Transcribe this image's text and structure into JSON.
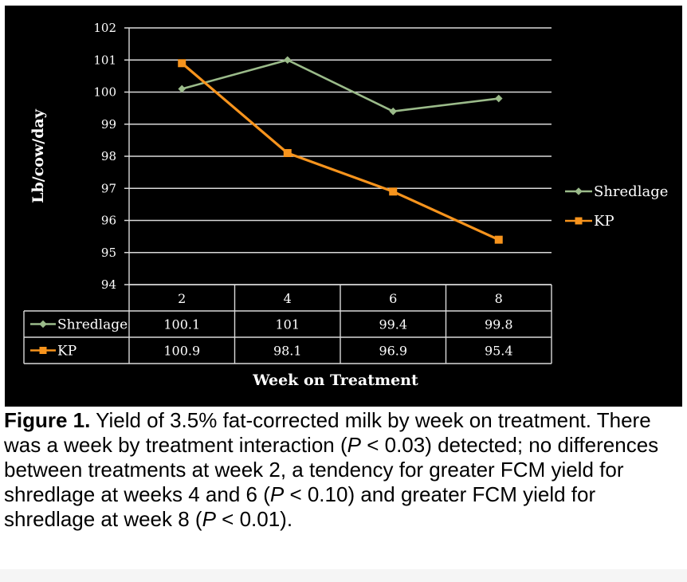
{
  "chart_data": {
    "type": "line",
    "title": "",
    "xlabel": "Week on Treatment",
    "ylabel": "Lb/cow/day",
    "categories": [
      "2",
      "4",
      "6",
      "8"
    ],
    "ylim": [
      94,
      102
    ],
    "yticks": [
      "94",
      "95",
      "96",
      "97",
      "98",
      "99",
      "100",
      "101",
      "102"
    ],
    "grid": true,
    "legend_position": "right",
    "series": [
      {
        "name": "Shredlage",
        "values": [
          100.1,
          101,
          99.4,
          99.8
        ],
        "labels": [
          "100.1",
          "101",
          "99.4",
          "99.8"
        ],
        "color": "#9bbb8a",
        "marker": "diamond"
      },
      {
        "name": "KP",
        "values": [
          100.9,
          98.1,
          96.9,
          95.4
        ],
        "labels": [
          "100.9",
          "98.1",
          "96.9",
          "95.4"
        ],
        "color": "#f7941d",
        "marker": "square"
      }
    ],
    "data_table": true
  },
  "caption": {
    "label": "Figure 1.",
    "seg1": " Yield of 3.5% fat-corrected milk by week on treatment. There was a week by treatment interaction (",
    "p1": "P",
    "seg2": " < 0.03) detected; no differences between treatments at week 2, a tendency for greater FCM yield for shredlage at weeks 4 and 6 (",
    "p2": "P",
    "seg3": " < 0.10) and greater FCM yield for shredlage at week 8 (",
    "p3": "P",
    "seg4": " < 0.01)."
  }
}
